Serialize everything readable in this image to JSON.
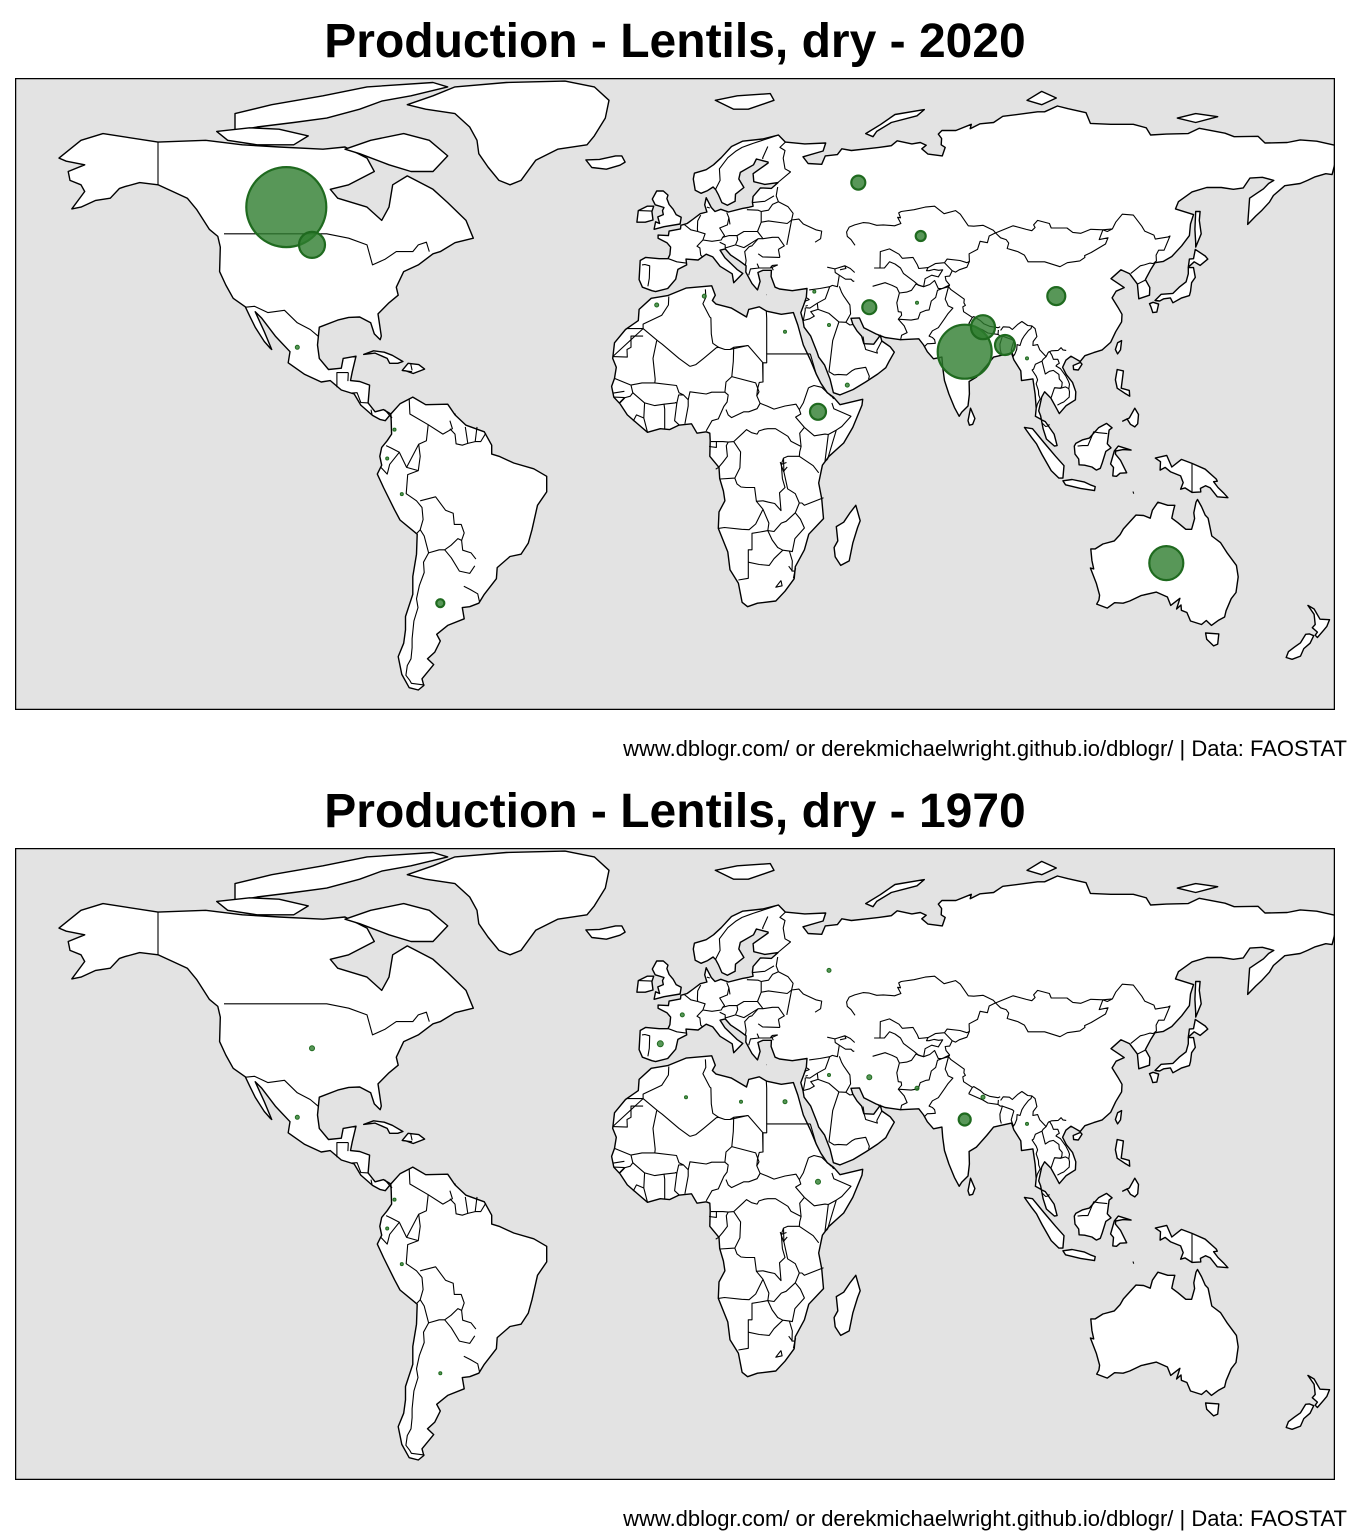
{
  "maps": [
    {
      "title": "Production - Lentils, dry - 2020",
      "caption": "www.dblogr.com/ or derekmichaelwright.github.io/dblogr/ | Data: FAOSTAT",
      "bubbles": [
        {
          "lon": -106,
          "lat": 55,
          "r": 40
        },
        {
          "lon": -99,
          "lat": 46.5,
          "r": 13
        },
        {
          "lon": -103,
          "lat": 23.5,
          "r": 2
        },
        {
          "lon": -78.5,
          "lat": -1.5,
          "r": 1.5
        },
        {
          "lon": -76.5,
          "lat": 5,
          "r": 1.5
        },
        {
          "lon": -74.5,
          "lat": -9.5,
          "r": 1.5
        },
        {
          "lon": -64,
          "lat": -34,
          "r": 4
        },
        {
          "lon": -5,
          "lat": 33,
          "r": 2
        },
        {
          "lon": 8,
          "lat": 35,
          "r": 2
        },
        {
          "lon": 30,
          "lat": 27,
          "r": 1.5
        },
        {
          "lon": 39,
          "lat": 9,
          "r": 8
        },
        {
          "lon": 47,
          "lat": 15,
          "r": 2
        },
        {
          "lon": 42,
          "lat": 28.5,
          "r": 1.5
        },
        {
          "lon": 38,
          "lat": 36,
          "r": 1.5
        },
        {
          "lon": 53,
          "lat": 32.5,
          "r": 7
        },
        {
          "lon": 66,
          "lat": 33.5,
          "r": 1.5
        },
        {
          "lon": 50,
          "lat": 60.5,
          "r": 7
        },
        {
          "lon": 67,
          "lat": 48.5,
          "r": 5
        },
        {
          "lon": 79,
          "lat": 22.5,
          "r": 27
        },
        {
          "lon": 84,
          "lat": 28,
          "r": 12
        },
        {
          "lon": 90,
          "lat": 24,
          "r": 10
        },
        {
          "lon": 96,
          "lat": 21,
          "r": 1.5
        },
        {
          "lon": 104,
          "lat": 35,
          "r": 9
        },
        {
          "lon": 134,
          "lat": -25,
          "r": 17
        }
      ]
    },
    {
      "title": "Production - Lentils, dry - 1970",
      "caption": "www.dblogr.com/ or derekmichaelwright.github.io/dblogr/ | Data: FAOSTAT",
      "bubbles": [
        {
          "lon": -99,
          "lat": 39,
          "r": 2.5
        },
        {
          "lon": -103,
          "lat": 23.5,
          "r": 2
        },
        {
          "lon": -76.5,
          "lat": 5,
          "r": 1.5
        },
        {
          "lon": -78.5,
          "lat": -1.5,
          "r": 1.5
        },
        {
          "lon": -74.5,
          "lat": -9.5,
          "r": 1.5
        },
        {
          "lon": -64,
          "lat": -34,
          "r": 1.5
        },
        {
          "lon": -4,
          "lat": 40,
          "r": 3
        },
        {
          "lon": 2,
          "lat": 46.5,
          "r": 2
        },
        {
          "lon": 3,
          "lat": 28,
          "r": 1.5
        },
        {
          "lon": 18,
          "lat": 27,
          "r": 1.5
        },
        {
          "lon": 30,
          "lat": 27,
          "r": 2
        },
        {
          "lon": 39,
          "lat": 9,
          "r": 2.5
        },
        {
          "lon": 42,
          "lat": 56.5,
          "r": 2
        },
        {
          "lon": 42,
          "lat": 33,
          "r": 1.5
        },
        {
          "lon": 53,
          "lat": 32.5,
          "r": 2.5
        },
        {
          "lon": 66,
          "lat": 30,
          "r": 2
        },
        {
          "lon": 79,
          "lat": 23,
          "r": 6
        },
        {
          "lon": 84,
          "lat": 28,
          "r": 2
        },
        {
          "lon": 96,
          "lat": 22,
          "r": 1.5
        }
      ]
    }
  ],
  "colors": {
    "ocean": "#e3e3e3",
    "land": "#ffffff",
    "border": "#000000",
    "bubble_fill": "#2e7d2e",
    "bubble_stroke": "#1f6a1f"
  }
}
